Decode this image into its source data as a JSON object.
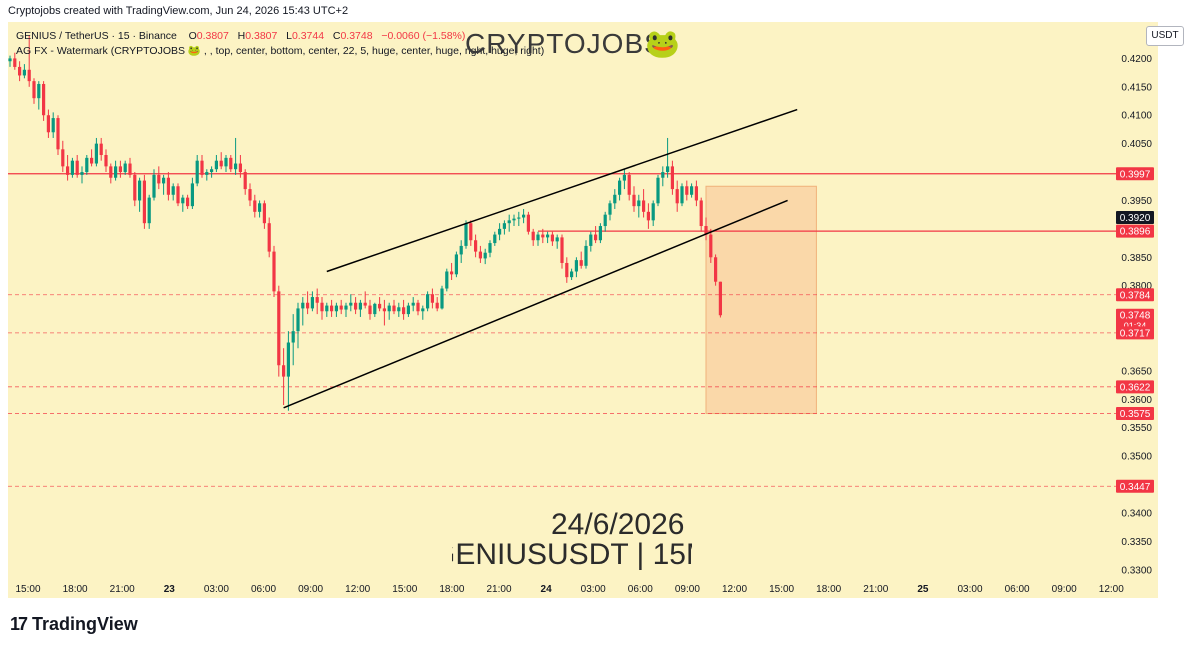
{
  "header": {
    "credit": "Cryptojobs created with TradingView.com, Jun 24, 2026 15:43 UTC+2"
  },
  "legend": {
    "symbol_line": "GENIUS / TetherUS · 15 · Binance",
    "open_label": "O",
    "open": "0.3807",
    "high_label": "H",
    "high": "0.3807",
    "low_label": "L",
    "low": "0.3744",
    "close_label": "C",
    "close": "0.3748",
    "change": "−0.0060 (−1.58%)",
    "indicator_line": "AG FX - Watermark (CRYPTOJOBS 🐸 , , top, center, bottom, center, 22, 5, huge, center, huge, right, huge, right)"
  },
  "watermark": {
    "title": "CRYPTOJOBS",
    "emoji": "🐸",
    "date": "24/6/2026",
    "symbol": "GENIUSUSDT | 15M"
  },
  "currency_badge": "USDT",
  "footer": {
    "brand": "TradingView",
    "brand_mark": "17"
  },
  "colors": {
    "background": "#fcf3c4",
    "up": "#089981",
    "down": "#f23645",
    "level_line": "#f23645",
    "zone_fill": "#f9cfa0",
    "trendline": "#000000"
  },
  "chart_data": {
    "type": "candlestick",
    "interval": "15",
    "exchange": "Binance",
    "ylim": [
      0.3275,
      0.425
    ],
    "y_ticks": [
      "0.4200",
      "0.4150",
      "0.4100",
      "0.4050",
      "0.3950",
      "0.3850",
      "0.3800",
      "0.3650",
      "0.3600",
      "0.3550",
      "0.3500",
      "0.3400",
      "0.3350",
      "0.3300"
    ],
    "x_ticks": [
      "15:00",
      "18:00",
      "21:00",
      "23",
      "03:00",
      "06:00",
      "09:00",
      "12:00",
      "15:00",
      "18:00",
      "21:00",
      "24",
      "03:00",
      "06:00",
      "09:00",
      "12:00",
      "15:00",
      "18:00",
      "21:00",
      "25",
      "03:00",
      "06:00",
      "09:00",
      "12:00"
    ],
    "price_labels": [
      {
        "value": 0.3997,
        "text": "0.3997",
        "style": "red"
      },
      {
        "value": 0.392,
        "text": "0.3920",
        "style": "dark"
      },
      {
        "value": 0.3896,
        "text": "0.3896",
        "style": "red"
      },
      {
        "value": 0.3784,
        "text": "0.3784",
        "style": "red"
      },
      {
        "value": 0.3748,
        "text": "0.3748",
        "style": "red",
        "countdown": "01:34"
      },
      {
        "value": 0.3717,
        "text": "0.3717",
        "style": "red"
      },
      {
        "value": 0.3622,
        "text": "0.3622",
        "style": "red"
      },
      {
        "value": 0.3575,
        "text": "0.3575",
        "style": "red"
      },
      {
        "value": 0.3447,
        "text": "0.3447",
        "style": "red"
      }
    ],
    "levels_solid": [
      0.3997
    ],
    "levels_dashed": [
      0.3784,
      0.3717,
      0.3622,
      0.3575,
      0.3447
    ],
    "short_level": {
      "value": 0.3896,
      "from_bar": 110,
      "to_bar": 150
    },
    "zone": {
      "from_bar": 145,
      "to_bar": 168,
      "top": 0.3975,
      "bottom": 0.3575
    },
    "trendlines": [
      {
        "from": [
          66,
          0.3825
        ],
        "to": [
          164,
          0.411
        ]
      },
      {
        "from": [
          57,
          0.3585
        ],
        "to": [
          162,
          0.395
        ]
      }
    ],
    "candles": [
      [
        0.4195,
        0.4205,
        0.4185,
        0.42
      ],
      [
        0.42,
        0.421,
        0.418,
        0.4185
      ],
      [
        0.4185,
        0.4195,
        0.416,
        0.417
      ],
      [
        0.417,
        0.419,
        0.4165,
        0.418
      ],
      [
        0.418,
        0.424,
        0.415,
        0.416
      ],
      [
        0.416,
        0.4165,
        0.412,
        0.413
      ],
      [
        0.413,
        0.416,
        0.411,
        0.4155
      ],
      [
        0.4155,
        0.416,
        0.409,
        0.41
      ],
      [
        0.41,
        0.411,
        0.406,
        0.407
      ],
      [
        0.407,
        0.4105,
        0.406,
        0.4095
      ],
      [
        0.4095,
        0.41,
        0.403,
        0.404
      ],
      [
        0.404,
        0.4055,
        0.4,
        0.401
      ],
      [
        0.401,
        0.403,
        0.3985,
        0.3995
      ],
      [
        0.3995,
        0.4025,
        0.399,
        0.402
      ],
      [
        0.402,
        0.403,
        0.399,
        0.3995
      ],
      [
        0.3995,
        0.401,
        0.398,
        0.4
      ],
      [
        0.4,
        0.403,
        0.3995,
        0.4025
      ],
      [
        0.4025,
        0.404,
        0.401,
        0.4015
      ],
      [
        0.4015,
        0.406,
        0.401,
        0.405
      ],
      [
        0.405,
        0.406,
        0.402,
        0.403
      ],
      [
        0.403,
        0.404,
        0.4,
        0.401
      ],
      [
        0.401,
        0.4015,
        0.398,
        0.399
      ],
      [
        0.399,
        0.402,
        0.3985,
        0.401
      ],
      [
        0.401,
        0.402,
        0.399,
        0.4
      ],
      [
        0.4,
        0.402,
        0.3995,
        0.4015
      ],
      [
        0.4015,
        0.4025,
        0.399,
        0.3995
      ],
      [
        0.3995,
        0.4,
        0.394,
        0.395
      ],
      [
        0.395,
        0.399,
        0.393,
        0.3985
      ],
      [
        0.3985,
        0.3995,
        0.39,
        0.391
      ],
      [
        0.391,
        0.396,
        0.39,
        0.3955
      ],
      [
        0.3955,
        0.4005,
        0.395,
        0.3995
      ],
      [
        0.3995,
        0.401,
        0.397,
        0.398
      ],
      [
        0.398,
        0.3995,
        0.396,
        0.399
      ],
      [
        0.399,
        0.4,
        0.395,
        0.396
      ],
      [
        0.396,
        0.398,
        0.395,
        0.3975
      ],
      [
        0.3975,
        0.398,
        0.394,
        0.3945
      ],
      [
        0.3945,
        0.396,
        0.393,
        0.3955
      ],
      [
        0.3955,
        0.396,
        0.3935,
        0.394
      ],
      [
        0.394,
        0.399,
        0.3935,
        0.398
      ],
      [
        0.398,
        0.403,
        0.3975,
        0.402
      ],
      [
        0.402,
        0.403,
        0.399,
        0.3995
      ],
      [
        0.3995,
        0.4005,
        0.3985,
        0.4
      ],
      [
        0.4,
        0.401,
        0.399,
        0.4005
      ],
      [
        0.4005,
        0.403,
        0.4,
        0.402
      ],
      [
        0.402,
        0.4035,
        0.4005,
        0.401
      ],
      [
        0.401,
        0.403,
        0.4,
        0.4025
      ],
      [
        0.4025,
        0.403,
        0.4,
        0.4005
      ],
      [
        0.4005,
        0.406,
        0.3995,
        0.4015
      ],
      [
        0.4015,
        0.403,
        0.399,
        0.4
      ],
      [
        0.4,
        0.4005,
        0.396,
        0.397
      ],
      [
        0.397,
        0.398,
        0.394,
        0.395
      ],
      [
        0.395,
        0.396,
        0.392,
        0.393
      ],
      [
        0.393,
        0.395,
        0.392,
        0.3945
      ],
      [
        0.3945,
        0.395,
        0.39,
        0.391
      ],
      [
        0.391,
        0.392,
        0.385,
        0.386
      ],
      [
        0.386,
        0.387,
        0.378,
        0.379
      ],
      [
        0.379,
        0.38,
        0.364,
        0.366
      ],
      [
        0.366,
        0.369,
        0.359,
        0.364
      ],
      [
        0.364,
        0.372,
        0.358,
        0.37
      ],
      [
        0.37,
        0.375,
        0.366,
        0.372
      ],
      [
        0.372,
        0.377,
        0.369,
        0.376
      ],
      [
        0.376,
        0.378,
        0.373,
        0.377
      ],
      [
        0.377,
        0.379,
        0.375,
        0.376
      ],
      [
        0.376,
        0.379,
        0.3755,
        0.378
      ],
      [
        0.378,
        0.3795,
        0.375,
        0.377
      ],
      [
        0.377,
        0.378,
        0.374,
        0.3755
      ],
      [
        0.3755,
        0.377,
        0.3745,
        0.3765
      ],
      [
        0.3765,
        0.3775,
        0.3745,
        0.3755
      ],
      [
        0.3755,
        0.377,
        0.3745,
        0.3765
      ],
      [
        0.3765,
        0.3775,
        0.375,
        0.3758
      ],
      [
        0.3758,
        0.377,
        0.3745,
        0.3765
      ],
      [
        0.3765,
        0.3785,
        0.3755,
        0.377
      ],
      [
        0.377,
        0.378,
        0.375,
        0.3758
      ],
      [
        0.3758,
        0.3775,
        0.3745,
        0.377
      ],
      [
        0.377,
        0.379,
        0.376,
        0.3765
      ],
      [
        0.3765,
        0.3775,
        0.374,
        0.375
      ],
      [
        0.375,
        0.377,
        0.3745,
        0.3768
      ],
      [
        0.3768,
        0.378,
        0.3755,
        0.376
      ],
      [
        0.376,
        0.3775,
        0.373,
        0.3755
      ],
      [
        0.3755,
        0.377,
        0.374,
        0.3765
      ],
      [
        0.3765,
        0.3775,
        0.375,
        0.3755
      ],
      [
        0.3755,
        0.377,
        0.3745,
        0.3762
      ],
      [
        0.3762,
        0.3775,
        0.374,
        0.375
      ],
      [
        0.375,
        0.377,
        0.3745,
        0.3765
      ],
      [
        0.3765,
        0.378,
        0.3755,
        0.377
      ],
      [
        0.377,
        0.3775,
        0.3748,
        0.3755
      ],
      [
        0.3755,
        0.3765,
        0.374,
        0.376
      ],
      [
        0.376,
        0.379,
        0.3755,
        0.3785
      ],
      [
        0.3785,
        0.3795,
        0.376,
        0.377
      ],
      [
        0.377,
        0.378,
        0.3755,
        0.376
      ],
      [
        0.376,
        0.38,
        0.3758,
        0.3795
      ],
      [
        0.3795,
        0.383,
        0.379,
        0.3825
      ],
      [
        0.3825,
        0.384,
        0.381,
        0.382
      ],
      [
        0.382,
        0.386,
        0.3815,
        0.3855
      ],
      [
        0.3855,
        0.388,
        0.384,
        0.387
      ],
      [
        0.387,
        0.3915,
        0.3865,
        0.391
      ],
      [
        0.391,
        0.3915,
        0.387,
        0.388
      ],
      [
        0.388,
        0.389,
        0.385,
        0.386
      ],
      [
        0.386,
        0.387,
        0.384,
        0.3848
      ],
      [
        0.3848,
        0.3865,
        0.3838,
        0.3858
      ],
      [
        0.3858,
        0.388,
        0.385,
        0.3875
      ],
      [
        0.3875,
        0.3895,
        0.387,
        0.389
      ],
      [
        0.389,
        0.391,
        0.388,
        0.39
      ],
      [
        0.39,
        0.3915,
        0.389,
        0.391
      ],
      [
        0.391,
        0.3925,
        0.3895,
        0.3915
      ],
      [
        0.3915,
        0.3925,
        0.3905,
        0.3918
      ],
      [
        0.3918,
        0.393,
        0.3905,
        0.392
      ],
      [
        0.392,
        0.3935,
        0.391,
        0.3925
      ],
      [
        0.3925,
        0.393,
        0.389,
        0.3895
      ],
      [
        0.3895,
        0.39,
        0.387,
        0.388
      ],
      [
        0.388,
        0.3895,
        0.387,
        0.389
      ],
      [
        0.389,
        0.39,
        0.3875,
        0.3885
      ],
      [
        0.3885,
        0.3895,
        0.3875,
        0.389
      ],
      [
        0.389,
        0.3895,
        0.387,
        0.3878
      ],
      [
        0.3878,
        0.389,
        0.3865,
        0.3885
      ],
      [
        0.3885,
        0.389,
        0.383,
        0.384
      ],
      [
        0.384,
        0.385,
        0.3805,
        0.3815
      ],
      [
        0.3815,
        0.383,
        0.381,
        0.3825
      ],
      [
        0.3825,
        0.385,
        0.3815,
        0.3845
      ],
      [
        0.3845,
        0.386,
        0.383,
        0.3835
      ],
      [
        0.3835,
        0.388,
        0.383,
        0.387
      ],
      [
        0.387,
        0.3895,
        0.386,
        0.389
      ],
      [
        0.389,
        0.3905,
        0.3875,
        0.388
      ],
      [
        0.388,
        0.391,
        0.3875,
        0.3905
      ],
      [
        0.3905,
        0.393,
        0.3895,
        0.3925
      ],
      [
        0.3925,
        0.395,
        0.3915,
        0.3945
      ],
      [
        0.3945,
        0.397,
        0.3935,
        0.396
      ],
      [
        0.396,
        0.399,
        0.395,
        0.3985
      ],
      [
        0.3985,
        0.4005,
        0.397,
        0.3995
      ],
      [
        0.3995,
        0.4,
        0.395,
        0.396
      ],
      [
        0.396,
        0.3975,
        0.393,
        0.394
      ],
      [
        0.394,
        0.396,
        0.392,
        0.395
      ],
      [
        0.395,
        0.397,
        0.392,
        0.393
      ],
      [
        0.393,
        0.3945,
        0.39,
        0.3915
      ],
      [
        0.3915,
        0.395,
        0.3905,
        0.3945
      ],
      [
        0.3945,
        0.3995,
        0.394,
        0.399
      ],
      [
        0.399,
        0.401,
        0.3975,
        0.4
      ],
      [
        0.4,
        0.406,
        0.399,
        0.401
      ],
      [
        0.401,
        0.402,
        0.396,
        0.397
      ],
      [
        0.397,
        0.3985,
        0.393,
        0.3945
      ],
      [
        0.3945,
        0.398,
        0.394,
        0.3975
      ],
      [
        0.3975,
        0.3985,
        0.395,
        0.396
      ],
      [
        0.396,
        0.398,
        0.3955,
        0.3975
      ],
      [
        0.3975,
        0.3985,
        0.394,
        0.395
      ],
      [
        0.395,
        0.3955,
        0.3895,
        0.3905
      ],
      [
        0.3905,
        0.392,
        0.388,
        0.389
      ],
      [
        0.389,
        0.39,
        0.384,
        0.385
      ],
      [
        0.385,
        0.3855,
        0.38,
        0.3807
      ],
      [
        0.3807,
        0.3807,
        0.3744,
        0.3748
      ]
    ]
  }
}
